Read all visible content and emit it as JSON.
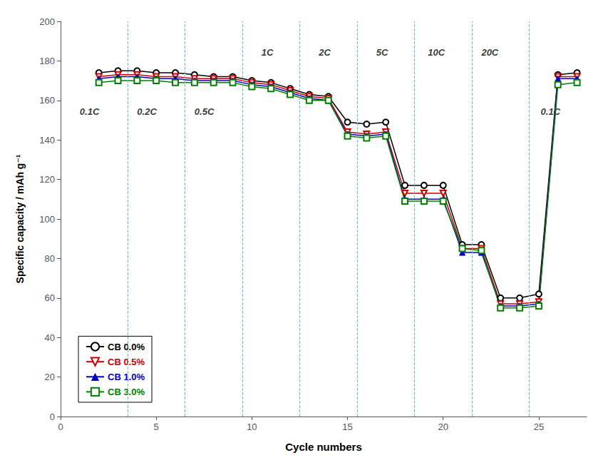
{
  "chart_data": {
    "type": "line",
    "xlabel": "Cycle numbers",
    "ylabel": "Specific capacity / mAh g⁻¹",
    "xlim": [
      0,
      27.5
    ],
    "ylim": [
      0,
      200
    ],
    "xticks": [
      0,
      5,
      10,
      15,
      20,
      25
    ],
    "yticks": [
      0,
      20,
      40,
      60,
      80,
      100,
      120,
      140,
      160,
      180,
      200
    ],
    "grid": false,
    "legend": "lower left",
    "vlines": {
      "x": [
        3.5,
        6.5,
        9.5,
        12.5,
        15.5,
        18.5,
        21.5,
        24.5
      ],
      "color": "#6BB8D4",
      "line_style": "dashed"
    },
    "annotations": [
      {
        "text": "0.1C",
        "x": 1.0,
        "y": 152
      },
      {
        "text": "0.2C",
        "x": 4.0,
        "y": 152
      },
      {
        "text": "0.5C",
        "x": 7.0,
        "y": 152
      },
      {
        "text": "1C",
        "x": 10.5,
        "y": 182
      },
      {
        "text": "2C",
        "x": 13.5,
        "y": 182
      },
      {
        "text": "5C",
        "x": 16.5,
        "y": 182
      },
      {
        "text": "10C",
        "x": 19.2,
        "y": 182
      },
      {
        "text": "20C",
        "x": 22.0,
        "y": 182
      },
      {
        "text": "0.1C",
        "x": 25.1,
        "y": 152
      }
    ],
    "series": [
      {
        "name": "CB 0.0%",
        "color": "#000000",
        "marker": "open-circle",
        "x": [
          2,
          3,
          4,
          5,
          6,
          7,
          8,
          9,
          10,
          11,
          12,
          13,
          14,
          15,
          16,
          17,
          18,
          19,
          20,
          21,
          22,
          23,
          24,
          25,
          26,
          27
        ],
        "values": [
          174,
          175,
          175,
          174,
          174,
          173,
          172,
          172,
          170,
          169,
          166,
          163,
          162,
          149,
          148,
          149,
          117,
          117,
          117,
          87,
          87,
          60,
          60,
          62,
          173,
          174
        ]
      },
      {
        "name": "CB 0.5%",
        "color": "#cc0000",
        "marker": "open-triangle-down",
        "x": [
          2,
          3,
          4,
          5,
          6,
          7,
          8,
          9,
          10,
          11,
          12,
          13,
          14,
          15,
          16,
          17,
          18,
          19,
          20,
          21,
          22,
          23,
          24,
          25,
          26,
          27
        ],
        "values": [
          172,
          173,
          173,
          172,
          172,
          171,
          171,
          171,
          169,
          168,
          165,
          162,
          161,
          144,
          143,
          144,
          113,
          113,
          113,
          85,
          85,
          57,
          57,
          58,
          172,
          172
        ]
      },
      {
        "name": "CB 1.0%",
        "color": "#0000cc",
        "marker": "triangle",
        "x": [
          2,
          3,
          4,
          5,
          6,
          7,
          8,
          9,
          10,
          11,
          12,
          13,
          14,
          15,
          16,
          17,
          18,
          19,
          20,
          21,
          22,
          23,
          24,
          25,
          26,
          27
        ],
        "values": [
          171,
          172,
          172,
          171,
          171,
          170,
          170,
          170,
          168,
          167,
          164,
          161,
          160,
          143,
          142,
          143,
          110,
          110,
          110,
          83,
          83,
          56,
          56,
          57,
          171,
          171
        ]
      },
      {
        "name": "CB 3.0%",
        "color": "#008000",
        "marker": "open-square",
        "x": [
          2,
          3,
          4,
          5,
          6,
          7,
          8,
          9,
          10,
          11,
          12,
          13,
          14,
          15,
          16,
          17,
          18,
          19,
          20,
          21,
          22,
          23,
          24,
          25,
          26,
          27
        ],
        "values": [
          169,
          170,
          170,
          170,
          169,
          169,
          169,
          169,
          167,
          166,
          163,
          160,
          160,
          142,
          141,
          142,
          109,
          109,
          109,
          85,
          84,
          55,
          55,
          56,
          168,
          169
        ]
      }
    ]
  }
}
